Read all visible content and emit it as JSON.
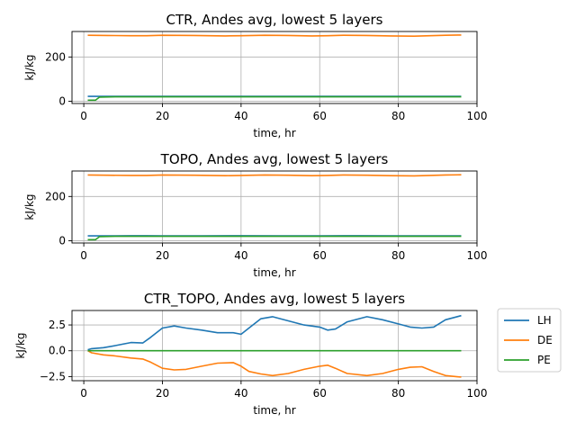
{
  "chart_data": [
    {
      "type": "line",
      "title": "CTR, Andes avg, lowest 5 layers",
      "xlabel": "time, hr",
      "ylabel": "kJ/kg",
      "xlim": [
        -3,
        100
      ],
      "ylim": [
        -10,
        315
      ],
      "xticks": [
        0,
        20,
        40,
        60,
        80,
        100
      ],
      "yticks": [
        0,
        200
      ],
      "grid": true,
      "series": [
        {
          "key": "LH",
          "color": "#1f77b4",
          "x": [
            1,
            4,
            8,
            12,
            16,
            20,
            30,
            40,
            50,
            60,
            70,
            80,
            90,
            96
          ],
          "y": [
            22,
            22,
            22,
            22,
            22,
            22,
            22,
            22,
            22,
            22,
            22,
            22,
            22,
            22
          ]
        },
        {
          "key": "DE",
          "color": "#ff7f0e",
          "x": [
            1,
            6,
            12,
            16,
            20,
            28,
            36,
            40,
            46,
            52,
            58,
            62,
            66,
            72,
            78,
            84,
            88,
            92,
            96
          ],
          "y": [
            298,
            297,
            296,
            296,
            298,
            297,
            295,
            296,
            298,
            297,
            295,
            296,
            298,
            297,
            295,
            294,
            296,
            298,
            299
          ]
        },
        {
          "key": "PE",
          "color": "#2ca02c",
          "x": [
            1,
            3,
            4,
            8,
            12,
            20,
            40,
            60,
            80,
            96
          ],
          "y": [
            5,
            5,
            19,
            20,
            20,
            20,
            20,
            20,
            20,
            20
          ]
        }
      ]
    },
    {
      "type": "line",
      "title": "TOPO, Andes avg, lowest 5 layers",
      "xlabel": "time, hr",
      "ylabel": "kJ/kg",
      "xlim": [
        -3,
        100
      ],
      "ylim": [
        -10,
        315
      ],
      "xticks": [
        0,
        20,
        40,
        60,
        80,
        100
      ],
      "yticks": [
        0,
        200
      ],
      "grid": true,
      "series": [
        {
          "key": "LH",
          "color": "#1f77b4",
          "x": [
            1,
            4,
            8,
            12,
            16,
            20,
            30,
            40,
            50,
            60,
            70,
            80,
            90,
            96
          ],
          "y": [
            22,
            22,
            22,
            23,
            23,
            22,
            22,
            23,
            22,
            22,
            23,
            22,
            22,
            22
          ]
        },
        {
          "key": "DE",
          "color": "#ff7f0e",
          "x": [
            1,
            6,
            12,
            16,
            20,
            28,
            36,
            40,
            46,
            52,
            58,
            62,
            66,
            72,
            78,
            84,
            88,
            92,
            96
          ],
          "y": [
            297,
            296,
            295,
            295,
            297,
            296,
            294,
            295,
            297,
            296,
            294,
            295,
            297,
            296,
            294,
            293,
            295,
            297,
            298
          ]
        },
        {
          "key": "PE",
          "color": "#2ca02c",
          "x": [
            1,
            3,
            4,
            8,
            12,
            20,
            40,
            60,
            80,
            96
          ],
          "y": [
            5,
            5,
            19,
            20,
            20,
            20,
            20,
            20,
            20,
            20
          ]
        }
      ]
    },
    {
      "type": "line",
      "title": "CTR_TOPO, Andes avg, lowest 5 layers",
      "xlabel": "time, hr",
      "ylabel": "kJ/kg",
      "xlim": [
        -3,
        100
      ],
      "ylim": [
        -2.9,
        3.9
      ],
      "xticks": [
        0,
        20,
        40,
        60,
        80,
        100
      ],
      "yticks": [
        2.5,
        0.0,
        -2.5
      ],
      "ytick_labels": [
        "2.5",
        "0.0",
        "−2.5"
      ],
      "grid": true,
      "legend": {
        "placement": "outside-right",
        "entries": [
          "LH",
          "DE",
          "PE"
        ]
      },
      "series": [
        {
          "name": "LH",
          "key": "LH",
          "color": "#1f77b4",
          "x": [
            1,
            2,
            5,
            8,
            12,
            15,
            17,
            20,
            23,
            26,
            30,
            34,
            38,
            40,
            42,
            45,
            48,
            52,
            56,
            60,
            62,
            64,
            67,
            72,
            76,
            80,
            83,
            86,
            89,
            92,
            96
          ],
          "y": [
            0.1,
            0.2,
            0.3,
            0.5,
            0.8,
            0.75,
            1.3,
            2.2,
            2.4,
            2.2,
            2.0,
            1.75,
            1.75,
            1.6,
            2.2,
            3.1,
            3.3,
            2.9,
            2.5,
            2.3,
            2.0,
            2.1,
            2.8,
            3.3,
            3.0,
            2.6,
            2.3,
            2.2,
            2.3,
            3.0,
            3.4
          ]
        },
        {
          "name": "DE",
          "key": "DE",
          "color": "#ff7f0e",
          "x": [
            1,
            2,
            5,
            8,
            12,
            15,
            17,
            20,
            23,
            26,
            30,
            34,
            38,
            40,
            42,
            45,
            48,
            52,
            56,
            60,
            62,
            64,
            67,
            72,
            76,
            80,
            83,
            86,
            89,
            92,
            96
          ],
          "y": [
            0.0,
            -0.2,
            -0.4,
            -0.5,
            -0.7,
            -0.8,
            -1.1,
            -1.7,
            -1.85,
            -1.8,
            -1.5,
            -1.2,
            -1.15,
            -1.5,
            -2.0,
            -2.25,
            -2.4,
            -2.2,
            -1.8,
            -1.5,
            -1.4,
            -1.7,
            -2.2,
            -2.4,
            -2.2,
            -1.8,
            -1.6,
            -1.55,
            -2.0,
            -2.4,
            -2.55
          ]
        },
        {
          "name": "PE",
          "key": "PE",
          "color": "#2ca02c",
          "x": [
            1,
            20,
            40,
            60,
            80,
            96
          ],
          "y": [
            0.0,
            0.0,
            0.0,
            0.0,
            0.0,
            0.0
          ]
        }
      ]
    }
  ]
}
